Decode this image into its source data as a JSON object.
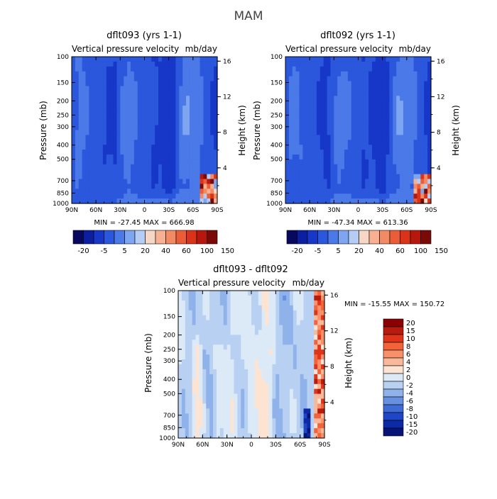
{
  "figure": {
    "title": "MAM"
  },
  "chart_data": [
    {
      "type": "heatmap",
      "title": "dflt093 (yrs 1-1)",
      "subtitle_left": "Vertical pressure velocity",
      "subtitle_right": "mb/day",
      "xlabel": "",
      "ylabel": "Pressure (mb)",
      "ylabel_right": "Height (km)",
      "x_ticks": [
        "90N",
        "60N",
        "30N",
        "0",
        "30S",
        "60S",
        "90S"
      ],
      "y_ticks": [
        "100",
        "150",
        "200",
        "250",
        "300",
        "400",
        "500",
        "700",
        "850",
        "1000"
      ],
      "y_ticks_right": [
        "16",
        "12",
        "8",
        "4"
      ],
      "stats": "MIN = -27.45   MAX = 666.98",
      "colorbar_labels": [
        "-20",
        "-5",
        "5",
        "20",
        "40",
        "60",
        "100",
        "150"
      ]
    },
    {
      "type": "heatmap",
      "title": "dflt092 (yrs 1-1)",
      "subtitle_left": "Vertical pressure velocity",
      "subtitle_right": "mb/day",
      "xlabel": "",
      "ylabel": "Pressure (mb)",
      "ylabel_right": "Height (km)",
      "x_ticks": [
        "90N",
        "60N",
        "30N",
        "0",
        "30S",
        "60S",
        "90S"
      ],
      "y_ticks": [
        "100",
        "150",
        "200",
        "250",
        "300",
        "400",
        "500",
        "700",
        "850",
        "1000"
      ],
      "y_ticks_right": [
        "16",
        "12",
        "8",
        "4"
      ],
      "stats": "MIN = -47.34   MAX = 613.36",
      "colorbar_labels": [
        "-20",
        "-5",
        "5",
        "20",
        "40",
        "60",
        "100",
        "150"
      ]
    },
    {
      "type": "heatmap",
      "title": "dflt093 - dflt092",
      "subtitle_left": "Vertical pressure velocity",
      "subtitle_right": "mb/day",
      "xlabel": "",
      "ylabel": "Pressure (mb)",
      "ylabel_right": "Height (km)",
      "x_ticks": [
        "90N",
        "60N",
        "30N",
        "0",
        "30S",
        "60S",
        "90S"
      ],
      "y_ticks": [
        "100",
        "150",
        "200",
        "250",
        "300",
        "400",
        "500",
        "700",
        "850",
        "1000"
      ],
      "y_ticks_right": [
        "16",
        "12",
        "8",
        "4"
      ],
      "stats": "MIN = -15.55   MAX = 150.72",
      "colorbar_labels": [
        "20",
        "15",
        "10",
        "8",
        "6",
        "4",
        "2",
        "0",
        "-2",
        "-4",
        "-6",
        "-8",
        "-10",
        "-15",
        "-20"
      ]
    }
  ],
  "colors": {
    "abs_scale": [
      "#08085e",
      "#0b1fa0",
      "#1637c8",
      "#2a57dc",
      "#4b79e8",
      "#7ea6f0",
      "#b5cdf5",
      "#f6d6c4",
      "#f7b092",
      "#f28a64",
      "#ea5d36",
      "#d93419",
      "#b8170e",
      "#7a0a06"
    ],
    "diff_scale": [
      "#8b0000",
      "#b81a0e",
      "#e0341a",
      "#f4623a",
      "#f8906a",
      "#fab89a",
      "#fde3d2",
      "#dceaf8",
      "#b8d0f2",
      "#8fb2ea",
      "#6790e0",
      "#3e6bd6",
      "#1e46c6",
      "#0c2aa6",
      "#061478"
    ]
  }
}
